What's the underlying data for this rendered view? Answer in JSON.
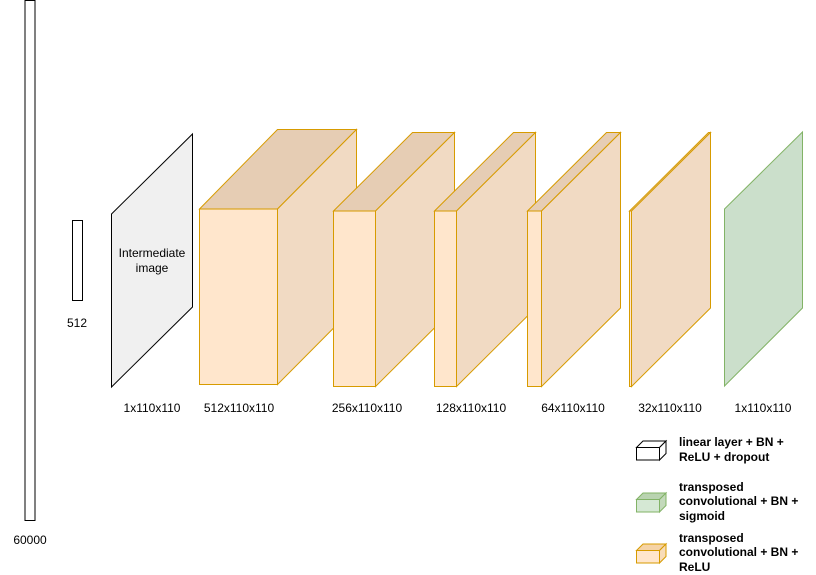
{
  "input_vector": {
    "label": "60000"
  },
  "linear_vector": {
    "label": "512"
  },
  "intermediate": {
    "text_line1": "Intermediate",
    "text_line2": "image",
    "label": "1x110x110"
  },
  "blocks": [
    {
      "label": "512x110x110"
    },
    {
      "label": "256x110x110"
    },
    {
      "label": "128x110x110"
    },
    {
      "label": "64x110x110"
    },
    {
      "label": "32x110x110"
    },
    {
      "label": "1x110x110"
    }
  ],
  "legend": [
    {
      "lines": [
        "linear layer + BN +",
        "ReLU + dropout"
      ],
      "icon": "cube-outline-white"
    },
    {
      "lines": [
        "transposed",
        "convolutional + BN +",
        "sigmoid"
      ],
      "icon": "cube-green"
    },
    {
      "lines": [
        "transposed",
        "convolutional + BN +",
        "ReLU"
      ],
      "icon": "cube-orange"
    }
  ],
  "colors": {
    "orange_front": "#ffe6cc",
    "orange_side": "#f1dac3",
    "orange_top": "#e6cdb4",
    "orange_stroke": "#d79b00",
    "green_fill": "#cbdfcb",
    "green_stroke": "#82b366",
    "gray_fill": "#f0f0f0"
  }
}
